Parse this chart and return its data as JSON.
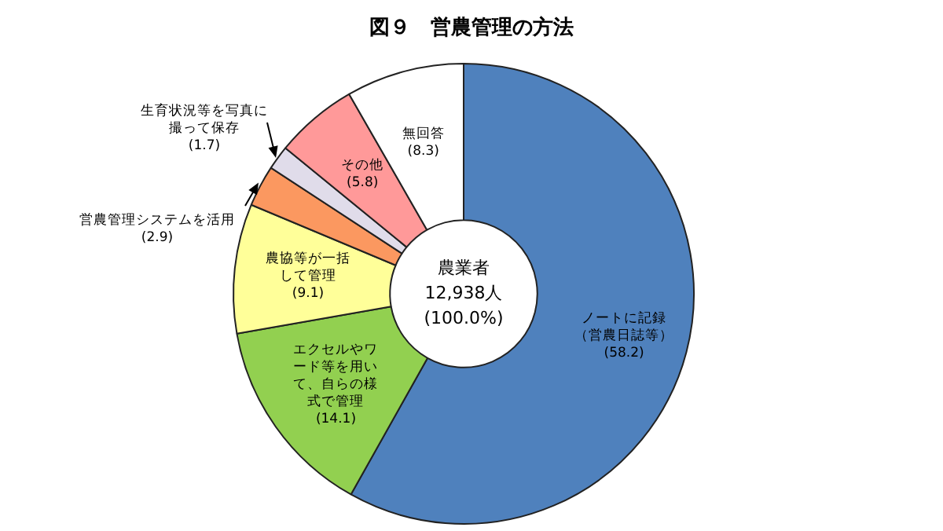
{
  "chart_data": {
    "type": "donut",
    "title": "図９　営農管理の方法",
    "categories": [
      "ノートに記録（営農日誌等）",
      "エクセルやワード等を用いて、自らの様式で管理",
      "農協等が一括して管理",
      "営農管理システムを活用",
      "生育状況等を写真に撮って保存",
      "その他",
      "無回答"
    ],
    "values": [
      58.2,
      14.1,
      9.1,
      2.9,
      1.7,
      5.8,
      8.3
    ],
    "colors": [
      "#4f81bd",
      "#92d050",
      "#ffff99",
      "#fb9860",
      "#e0dcea",
      "#ff9999",
      "#ffffff"
    ],
    "value_labels": [
      "(58.2)",
      "(14.1)",
      "(9.1)",
      "(2.9)",
      "(1.7)",
      "(5.8)",
      "(8.3)"
    ],
    "annotations": [
      "農業者",
      "12,938人",
      "(100.0%)"
    ],
    "legend": false
  }
}
